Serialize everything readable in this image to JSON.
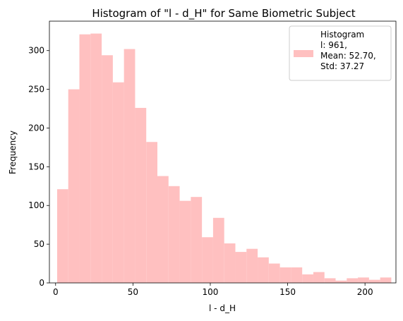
{
  "chart_data": {
    "type": "bar",
    "title": "Histogram of \"l - d_H\" for Same Biometric Subject",
    "xlabel": "l - d_H",
    "ylabel": "Frequency",
    "xlim": [
      -4,
      220
    ],
    "ylim": [
      0,
      338
    ],
    "xticks": [
      0,
      50,
      100,
      150,
      200
    ],
    "yticks": [
      0,
      50,
      100,
      150,
      200,
      250,
      300
    ],
    "grid": false,
    "legend_position": "top-right",
    "legend_lines": [
      "Histogram",
      "l: 961,",
      "Mean: 52.70,",
      "Std: 37.27"
    ],
    "bar_color": "#ffc0c0",
    "bin_edges": [
      1,
      8.2,
      15.4,
      22.6,
      29.8,
      37,
      44.2,
      51.4,
      58.6,
      65.8,
      73,
      80.2,
      87.4,
      94.6,
      101.8,
      109,
      116.2,
      123.4,
      130.6,
      137.8,
      145,
      152.2,
      159.4,
      166.6,
      173.8,
      181,
      188.2,
      195.4,
      202.6,
      209.8,
      217
    ],
    "counts": [
      121,
      250,
      321,
      322,
      294,
      259,
      302,
      226,
      182,
      138,
      125,
      106,
      111,
      59,
      84,
      51,
      40,
      44,
      33,
      25,
      20,
      20,
      11,
      14,
      6,
      3,
      6,
      7,
      4,
      7
    ]
  }
}
